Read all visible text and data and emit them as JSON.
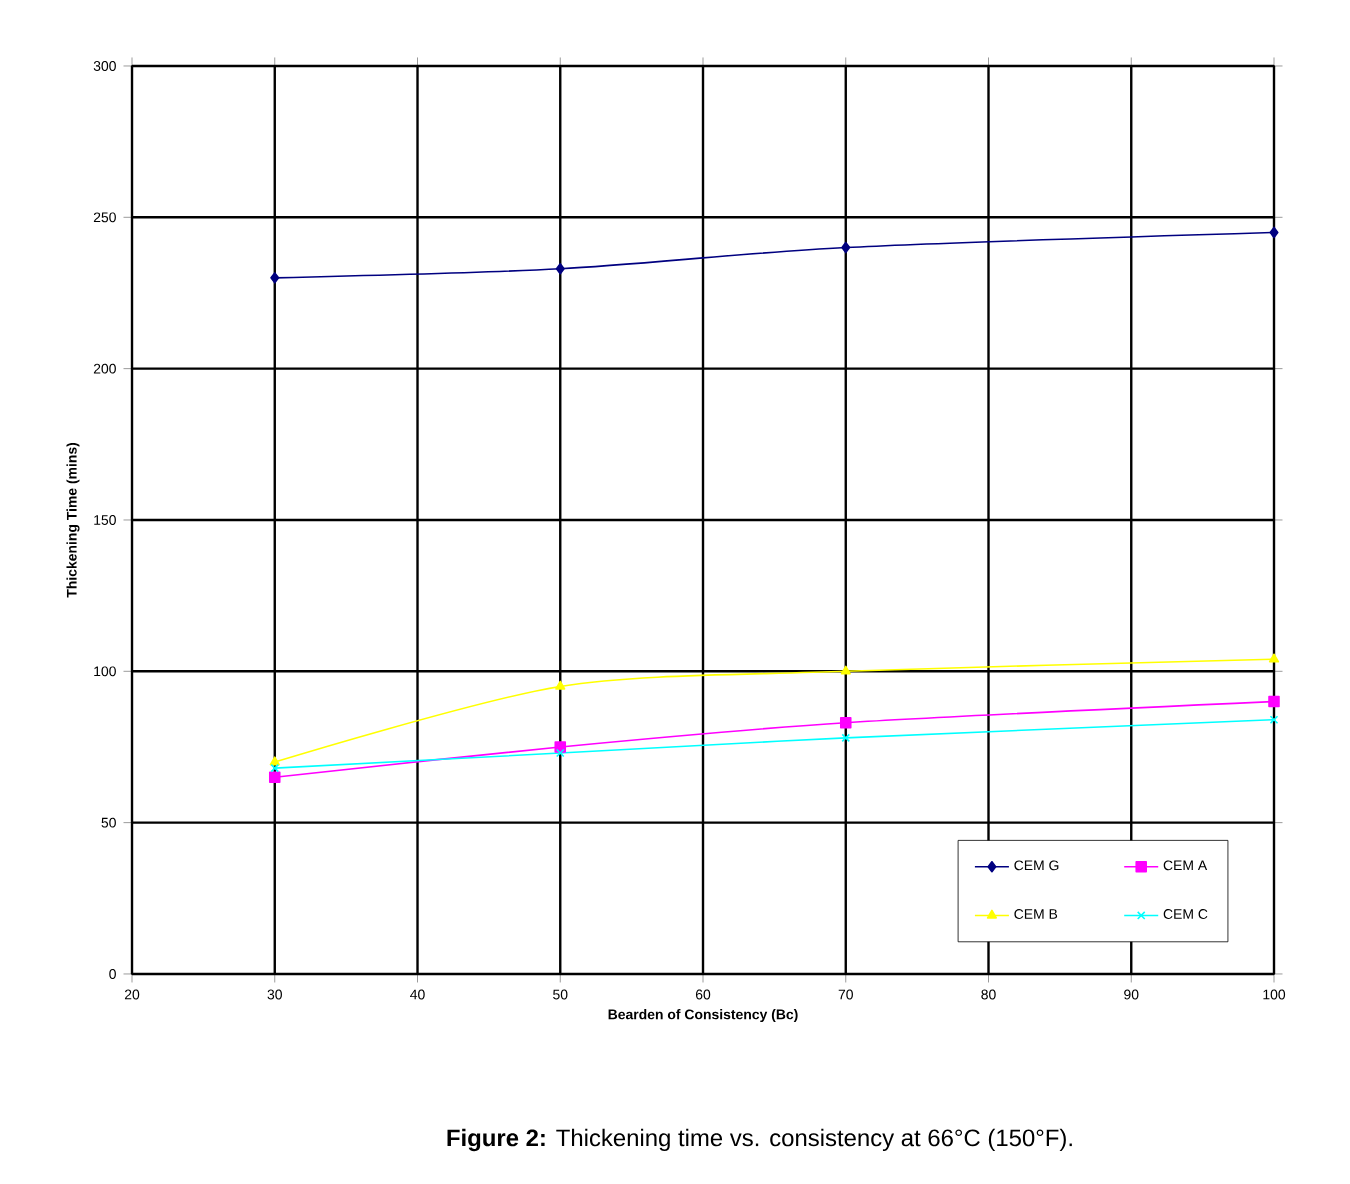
{
  "chart_data": {
    "type": "line",
    "xlabel": "Bearden of Consistency (Bc)",
    "ylabel": "Thickening Time (mins)",
    "x": [
      30,
      50,
      70,
      100
    ],
    "series": [
      {
        "name": "CEM G",
        "color": "#000080",
        "marker": "diamond",
        "values": [
          230,
          233,
          240,
          245
        ]
      },
      {
        "name": "CEM A",
        "color": "#ff00ff",
        "marker": "square",
        "values": [
          65,
          75,
          83,
          90
        ]
      },
      {
        "name": "CEM B",
        "color": "#ffff00",
        "marker": "triangle",
        "values": [
          70,
          95,
          100,
          104
        ]
      },
      {
        "name": "CEM C",
        "color": "#00ffff",
        "marker": "cross",
        "values": [
          68,
          73,
          78,
          84
        ]
      }
    ],
    "xlim": [
      20,
      100
    ],
    "xticks": [
      20,
      30,
      40,
      50,
      60,
      70,
      80,
      90,
      100
    ],
    "ylim": [
      0,
      300
    ],
    "yticks": [
      0,
      50,
      100,
      150,
      200,
      250,
      300
    ],
    "grid": true,
    "legend": "bottom right",
    "line_style": "solid",
    "annotations": [
      "**Figure 2:** Thickening time vs. consistency at 66°C (150°F)."
    ]
  }
}
